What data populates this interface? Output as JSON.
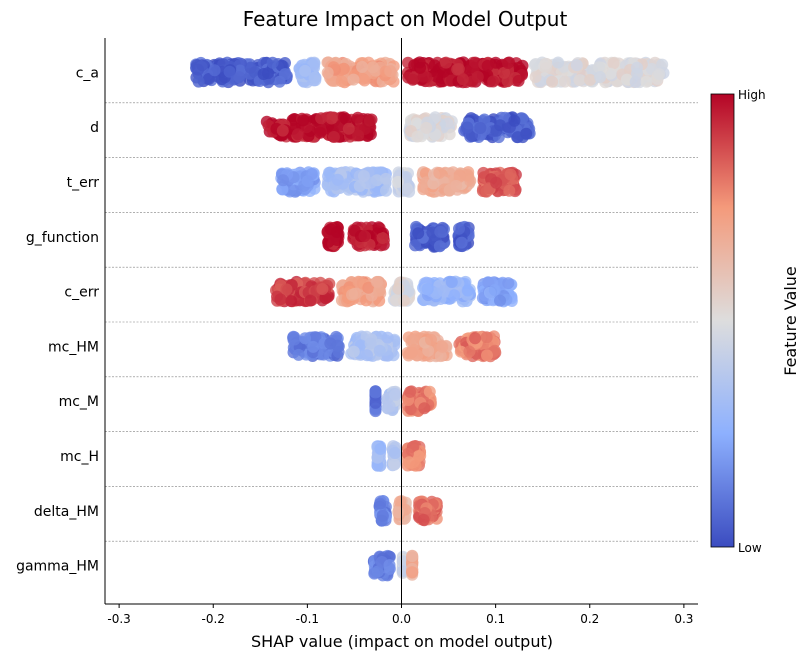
{
  "chart_data": {
    "type": "scatter",
    "subtype": "shap-beeswarm",
    "title": "Feature Impact on Model Output",
    "xlabel": "SHAP value (impact on model output)",
    "xlim": [
      -0.315,
      0.315
    ],
    "x_ticks": [
      "-0.3",
      "-0.2",
      "-0.1",
      "0.0",
      "0.1",
      "0.2",
      "0.3"
    ],
    "x_tick_values": [
      -0.3,
      -0.2,
      -0.1,
      0.0,
      0.1,
      0.2,
      0.3
    ],
    "grid": false,
    "colorbar": {
      "label": "Feature Value",
      "high_label": "High",
      "low_label": "Low",
      "colors": [
        "#3b4cc0",
        "#8db0fe",
        "#dddddd",
        "#f49a7b",
        "#b40426"
      ]
    },
    "features": [
      {
        "name": "c_a",
        "segments": [
          {
            "x_min": -0.225,
            "x_max": -0.115,
            "value": 0.05
          },
          {
            "x_min": -0.115,
            "x_max": -0.085,
            "value": 0.3
          },
          {
            "x_min": -0.085,
            "x_max": 0.0,
            "value": 0.72
          },
          {
            "x_min": 0.0,
            "x_max": 0.135,
            "value": 0.98
          },
          {
            "x_min": 0.135,
            "x_max": 0.285,
            "value": 0.5
          }
        ]
      },
      {
        "name": "d",
        "segments": [
          {
            "x_min": -0.15,
            "x_max": -0.025,
            "value": 0.98
          },
          {
            "x_min": 0.002,
            "x_max": 0.06,
            "value": 0.5
          },
          {
            "x_min": 0.06,
            "x_max": 0.143,
            "value": 0.05
          }
        ]
      },
      {
        "name": "t_err",
        "segments": [
          {
            "x_min": -0.135,
            "x_max": -0.085,
            "value": 0.22
          },
          {
            "x_min": -0.085,
            "x_max": -0.01,
            "value": 0.33
          },
          {
            "x_min": -0.01,
            "x_max": 0.015,
            "value": 0.45
          },
          {
            "x_min": 0.015,
            "x_max": 0.08,
            "value": 0.68
          },
          {
            "x_min": 0.08,
            "x_max": 0.128,
            "value": 0.85
          }
        ]
      },
      {
        "name": "g_function",
        "segments": [
          {
            "x_min": -0.085,
            "x_max": -0.06,
            "value": 0.98
          },
          {
            "x_min": -0.058,
            "x_max": -0.012,
            "value": 0.98
          },
          {
            "x_min": 0.008,
            "x_max": 0.052,
            "value": 0.05
          },
          {
            "x_min": 0.054,
            "x_max": 0.078,
            "value": 0.05
          }
        ]
      },
      {
        "name": "c_err",
        "segments": [
          {
            "x_min": -0.14,
            "x_max": -0.07,
            "value": 0.9
          },
          {
            "x_min": -0.07,
            "x_max": -0.015,
            "value": 0.72
          },
          {
            "x_min": -0.015,
            "x_max": 0.015,
            "value": 0.5
          },
          {
            "x_min": 0.015,
            "x_max": 0.08,
            "value": 0.28
          },
          {
            "x_min": 0.08,
            "x_max": 0.125,
            "value": 0.22
          }
        ]
      },
      {
        "name": "mc_HM",
        "segments": [
          {
            "x_min": -0.122,
            "x_max": -0.06,
            "value": 0.12
          },
          {
            "x_min": -0.06,
            "x_max": 0.0,
            "value": 0.35
          },
          {
            "x_min": 0.0,
            "x_max": 0.055,
            "value": 0.68
          },
          {
            "x_min": 0.055,
            "x_max": 0.106,
            "value": 0.8
          }
        ]
      },
      {
        "name": "mc_M",
        "segments": [
          {
            "x_min": -0.034,
            "x_max": -0.022,
            "value": 0.1
          },
          {
            "x_min": -0.022,
            "x_max": 0.0,
            "value": 0.38
          },
          {
            "x_min": 0.0,
            "x_max": 0.038,
            "value": 0.8
          }
        ]
      },
      {
        "name": "mc_H",
        "segments": [
          {
            "x_min": -0.032,
            "x_max": -0.016,
            "value": 0.3
          },
          {
            "x_min": -0.016,
            "x_max": 0.0,
            "value": 0.38
          },
          {
            "x_min": 0.0,
            "x_max": 0.027,
            "value": 0.8
          }
        ]
      },
      {
        "name": "delta_HM",
        "segments": [
          {
            "x_min": -0.03,
            "x_max": -0.01,
            "value": 0.15
          },
          {
            "x_min": -0.01,
            "x_max": 0.012,
            "value": 0.65
          },
          {
            "x_min": 0.012,
            "x_max": 0.044,
            "value": 0.82
          }
        ]
      },
      {
        "name": "gamma_HM",
        "segments": [
          {
            "x_min": -0.036,
            "x_max": -0.005,
            "value": 0.12
          },
          {
            "x_min": -0.005,
            "x_max": 0.005,
            "value": 0.45
          },
          {
            "x_min": 0.005,
            "x_max": 0.016,
            "value": 0.7
          }
        ]
      }
    ]
  }
}
